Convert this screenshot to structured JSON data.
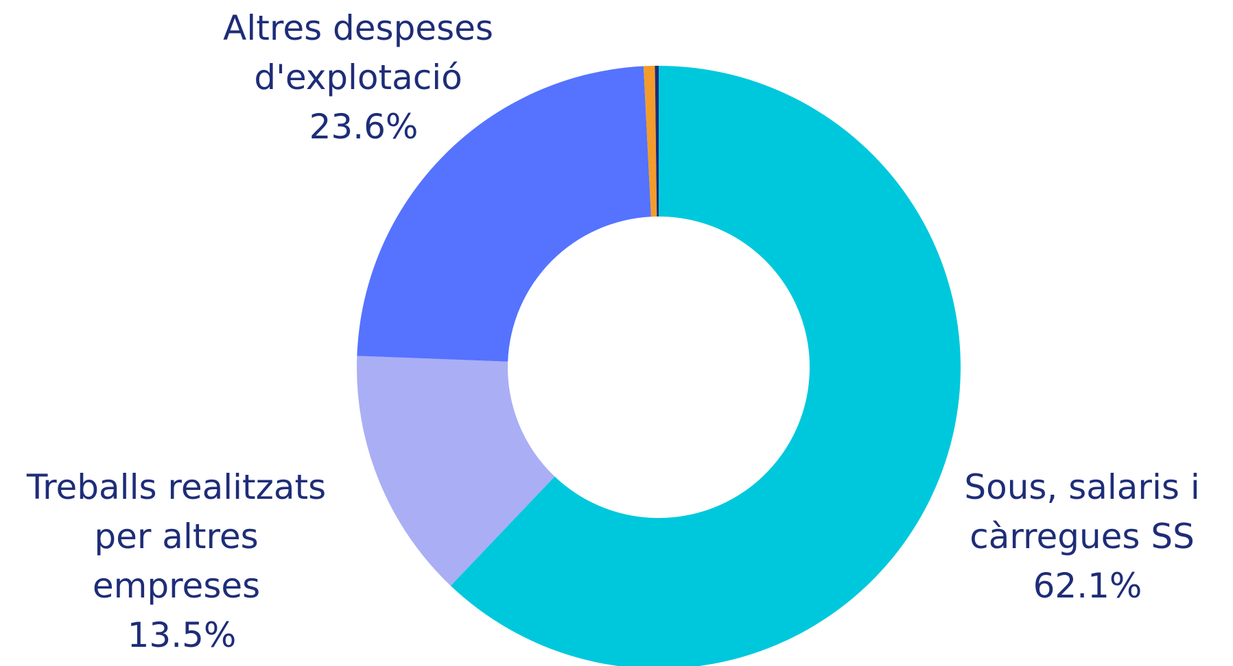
{
  "chart_data": {
    "type": "pie",
    "title": "",
    "donut": true,
    "slices": [
      {
        "label_lines": [
          "Sous, salaris i",
          "càrregues SS"
        ],
        "value": 62.1,
        "value_label": "62.1%",
        "color": "#00c8dc"
      },
      {
        "label_lines": [
          "Treballs realitzats",
          "per altres",
          "empreses"
        ],
        "value": 13.5,
        "value_label": "13.5%",
        "color": "#aaaef5"
      },
      {
        "label_lines": [
          "Altres despeses",
          "d'explotació"
        ],
        "value": 23.6,
        "value_label": "23.6%",
        "color": "#5573ff"
      },
      {
        "label_lines": [],
        "value": 0.6,
        "value_label": "",
        "color": "#f39c2c"
      },
      {
        "label_lines": [],
        "value": 0.2,
        "value_label": "",
        "color": "#1e2d78"
      }
    ]
  }
}
